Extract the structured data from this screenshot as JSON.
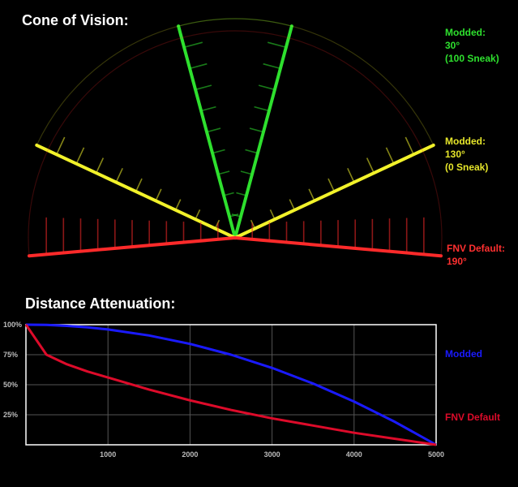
{
  "cone_title": "Cone of Vision:",
  "atten_title": "Distance Attenuation:",
  "colors": {
    "green": "#2ee02e",
    "yellow": "#f2f22a",
    "red": "#ff2a2a",
    "blue": "#1a1aff",
    "crimson": "#dd0b2a",
    "grid": "#555555"
  },
  "cone_legend": [
    {
      "lines": [
        "Modded:",
        "30°",
        "(100 Sneak)"
      ],
      "color": "#2ee02e"
    },
    {
      "lines": [
        "Modded:",
        "130°",
        "(0 Sneak)"
      ],
      "color": "#e6e62a"
    },
    {
      "lines": [
        "FNV Default:",
        "190°"
      ],
      "color": "#ff3030"
    }
  ],
  "chart_data": [
    {
      "type": "cone",
      "title": "Cone of Vision:",
      "cones": [
        {
          "name": "Modded: 30° (100 Sneak)",
          "angle_deg": 30
        },
        {
          "name": "Modded: 130° (0 Sneak)",
          "angle_deg": 130
        },
        {
          "name": "FNV Default: 190°",
          "angle_deg": 190
        }
      ]
    },
    {
      "type": "line",
      "title": "Distance Attenuation:",
      "xlim": [
        0,
        5000
      ],
      "ylim": [
        0,
        100
      ],
      "x_ticks": [
        "1000",
        "2000",
        "3000",
        "4000",
        "5000"
      ],
      "y_ticks": [
        "100%",
        "75%",
        "50%",
        "25%"
      ],
      "grid": true,
      "legend": "right",
      "x": [
        0,
        250,
        500,
        750,
        1000,
        1500,
        2000,
        2500,
        3000,
        3500,
        4000,
        4500,
        5000
      ],
      "series": [
        {
          "name": "Modded",
          "color": "#1a1aff",
          "values": [
            100,
            99.8,
            99,
            97.8,
            96,
            91,
            84,
            75,
            64,
            51,
            36,
            19,
            0
          ]
        },
        {
          "name": "FNV Default",
          "color": "#dd0b2a",
          "values": [
            100,
            75,
            67,
            61,
            56,
            46,
            37,
            29,
            22,
            16,
            10,
            5,
            0
          ]
        }
      ]
    }
  ]
}
